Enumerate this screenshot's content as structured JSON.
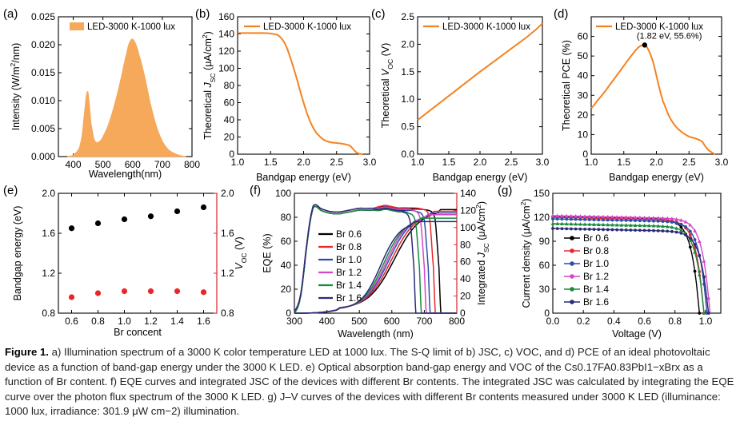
{
  "colors": {
    "orange": "#f58220",
    "fill_orange": "#f6a95a",
    "black": "#000000",
    "red": "#e8262a",
    "blue": "#2b4fa8",
    "magenta": "#d646c8",
    "green": "#1a8a3c",
    "navy": "#2a2a78",
    "bandgap": "#000000",
    "voc_axis": "#e8262a"
  },
  "panels": {
    "a": {
      "letter": "(a)"
    },
    "b": {
      "letter": "(b)"
    },
    "c": {
      "letter": "(c)"
    },
    "d": {
      "letter": "(d)"
    },
    "e": {
      "letter": "(e)"
    },
    "f": {
      "letter": "(f)"
    },
    "g": {
      "letter": "(g)"
    }
  },
  "caption": {
    "fig_label": "Figure 1.",
    "text": "a) Illumination spectrum of a 3000 K color temperature LED at 1000 lux. The S-Q limit of b) JSC, c) VOC, and d) PCE of an ideal photovoltaic device as a function of band-gap energy under the 3000 K LED. e) Optical absorption band-gap energy and VOC of the Cs0.17FA0.83PbI1−xBrx as a function of Br content. f) EQE curves and integrated JSC of the devices with different Br contents. The integrated JSC was calculated by integrating the EQE curve over the photon flux spectrum of the 3000 K LED. g) J–V curves of the devices with different Br contents measured under 3000 K LED (illuminance: 1000 lux, irradiance: 301.9 μW cm−2) illumination."
  },
  "chart_data": [
    {
      "id": "a",
      "type": "area",
      "xlabel": "Wavelength(nm)",
      "ylabel": "Intensity (W/m²/nm)",
      "legend": [
        "LED-3000 K-1000 lux"
      ],
      "xlim": [
        350,
        800
      ],
      "ylim": [
        0,
        0.025
      ],
      "xticks": [
        400,
        500,
        600,
        700,
        800
      ],
      "yticks": [
        0.0,
        0.005,
        0.01,
        0.015,
        0.02,
        0.025
      ],
      "ytick_labels": [
        "0.000",
        "0.005",
        "0.010",
        "0.015",
        "0.020",
        "0.025"
      ],
      "series": [
        {
          "x": [
            380,
            400,
            420,
            430,
            440,
            445,
            450,
            455,
            460,
            470,
            480,
            490,
            500,
            520,
            540,
            560,
            580,
            590,
            600,
            610,
            620,
            640,
            660,
            680,
            700,
            720,
            740,
            760,
            780
          ],
          "y": [
            0,
            0.0003,
            0.0015,
            0.004,
            0.009,
            0.0112,
            0.0115,
            0.009,
            0.006,
            0.0032,
            0.0025,
            0.0028,
            0.0036,
            0.006,
            0.0095,
            0.0138,
            0.0185,
            0.0205,
            0.021,
            0.0202,
            0.0185,
            0.0145,
            0.0095,
            0.0055,
            0.0028,
            0.0013,
            0.0006,
            0.0002,
            0
          ]
        }
      ]
    },
    {
      "id": "b",
      "type": "line",
      "xlabel": "Bandgap energy (eV)",
      "ylabel": "Theoretical J_SC (μA/cm²)",
      "legend": [
        "LED-3000 K-1000 lux"
      ],
      "xlim": [
        1.0,
        3.0
      ],
      "ylim": [
        0,
        160
      ],
      "xticks": [
        1.0,
        1.5,
        2.0,
        2.5,
        3.0
      ],
      "xtick_labels": [
        "1.0",
        "1.5",
        "2.0",
        "2.5",
        "3.0"
      ],
      "yticks": [
        0,
        20,
        40,
        60,
        80,
        100,
        120,
        140,
        160
      ],
      "series": [
        {
          "x": [
            1.0,
            1.2,
            1.4,
            1.5,
            1.6,
            1.65,
            1.7,
            1.75,
            1.8,
            1.85,
            1.9,
            1.95,
            2.0,
            2.05,
            2.1,
            2.15,
            2.2,
            2.3,
            2.4,
            2.5,
            2.6,
            2.7,
            2.75,
            2.8,
            2.85,
            2.9
          ],
          "y": [
            141,
            141,
            141,
            140.5,
            139,
            136,
            131,
            123,
            112,
            100,
            87,
            73,
            60,
            48,
            38,
            30,
            24,
            17,
            14,
            13,
            12,
            10,
            6,
            2,
            0.5,
            0
          ]
        }
      ]
    },
    {
      "id": "c",
      "type": "line",
      "xlabel": "Bandgap energy (eV)",
      "ylabel": "Theoretical V_OC (V)",
      "legend": [
        "LED-3000 K-1000 lux"
      ],
      "xlim": [
        1.0,
        3.0
      ],
      "ylim": [
        0,
        2.5
      ],
      "xticks": [
        1.0,
        1.5,
        2.0,
        2.5,
        3.0
      ],
      "xtick_labels": [
        "1.0",
        "1.5",
        "2.0",
        "2.5",
        "3.0"
      ],
      "yticks": [
        0.0,
        0.5,
        1.0,
        1.5,
        2.0,
        2.5
      ],
      "ytick_labels": [
        "0.0",
        "0.5",
        "1.0",
        "1.5",
        "2.0",
        "2.5"
      ],
      "series": [
        {
          "x": [
            1.0,
            1.25,
            1.5,
            1.75,
            2.0,
            2.25,
            2.5,
            2.75,
            2.9,
            3.0
          ],
          "y": [
            0.62,
            0.84,
            1.06,
            1.28,
            1.5,
            1.71,
            1.92,
            2.13,
            2.27,
            2.38
          ]
        }
      ]
    },
    {
      "id": "d",
      "type": "line",
      "xlabel": "Bandgap energy (eV)",
      "ylabel": "Theoretical PCE (%)",
      "legend": [
        "LED-3000 K-1000 lux"
      ],
      "annotation": "(1.82 eV, 55.6%)",
      "peak": [
        1.82,
        55.6
      ],
      "xlim": [
        1.0,
        3.0
      ],
      "ylim": [
        0,
        70
      ],
      "xticks": [
        1.0,
        1.5,
        2.0,
        2.5,
        3.0
      ],
      "xtick_labels": [
        "1.0",
        "1.5",
        "2.0",
        "2.5",
        "3.0"
      ],
      "yticks": [
        0,
        10,
        20,
        30,
        40,
        50,
        60
      ],
      "series": [
        {
          "x": [
            1.0,
            1.1,
            1.2,
            1.3,
            1.4,
            1.5,
            1.6,
            1.7,
            1.75,
            1.82,
            1.88,
            1.95,
            2.0,
            2.05,
            2.1,
            2.2,
            2.3,
            2.4,
            2.5,
            2.6,
            2.7,
            2.75,
            2.8,
            2.9
          ],
          "y": [
            23.5,
            27.5,
            31.5,
            36,
            40.5,
            45,
            49.5,
            53.5,
            55,
            55.6,
            53,
            47,
            40,
            33,
            27,
            19,
            14,
            11,
            9,
            8,
            6.5,
            4,
            2,
            0
          ]
        }
      ]
    },
    {
      "id": "e",
      "type": "scatter",
      "xlabel": "Br concent",
      "ylabel": "Bandgap energy (eV)",
      "ylabel_right": "V_OC (V)",
      "xlim": [
        0.5,
        1.7
      ],
      "ylim": [
        0.8,
        2.0
      ],
      "ylim_right": [
        0.8,
        2.0
      ],
      "xticks": [
        0.6,
        0.8,
        1.0,
        1.2,
        1.4,
        1.6
      ],
      "xtick_labels": [
        "0.6",
        "0.8",
        "1.0",
        "1.2",
        "1.4",
        "1.6"
      ],
      "yticks": [
        0.8,
        1.2,
        1.6,
        2.0
      ],
      "ytick_labels": [
        "0.8",
        "1.2",
        "1.6",
        "2.0"
      ],
      "series": [
        {
          "axis": "left",
          "x": [
            0.6,
            0.8,
            1.0,
            1.2,
            1.4,
            1.6
          ],
          "y": [
            1.65,
            1.7,
            1.74,
            1.77,
            1.82,
            1.86
          ]
        },
        {
          "axis": "right",
          "x": [
            0.6,
            0.8,
            1.0,
            1.2,
            1.4,
            1.6
          ],
          "y": [
            0.96,
            1.0,
            1.02,
            1.02,
            1.02,
            1.01
          ]
        }
      ]
    },
    {
      "id": "f",
      "type": "line",
      "xlabel": "Wavelength (nm)",
      "ylabel": "EQE (%)",
      "ylabel_right": "Integrated J_SC (μA/cm²)",
      "xlim": [
        300,
        800
      ],
      "ylim": [
        0,
        100
      ],
      "ylim_right": [
        0,
        140
      ],
      "xticks": [
        300,
        400,
        500,
        600,
        700,
        800
      ],
      "yticks": [
        0,
        20,
        40,
        60,
        80,
        100
      ],
      "yticks_right": [
        0,
        20,
        40,
        60,
        80,
        100,
        120,
        140
      ],
      "series": [
        {
          "name": "Br 0.6",
          "edge": 745,
          "jsc": 121
        },
        {
          "name": "Br 0.8",
          "edge": 728,
          "jsc": 119
        },
        {
          "name": "Br 1.0",
          "edge": 712,
          "jsc": 117
        },
        {
          "name": "Br 1.2",
          "edge": 700,
          "jsc": 115
        },
        {
          "name": "Br 1.4",
          "edge": 685,
          "jsc": 111
        },
        {
          "name": "Br 1.6",
          "edge": 668,
          "jsc": 107
        }
      ],
      "eqe_shape": {
        "x": [
          300,
          320,
          340,
          355,
          365,
          380,
          400,
          420,
          440,
          460,
          480,
          500,
          520,
          540,
          560,
          580,
          600,
          620,
          640
        ],
        "y": [
          0,
          15,
          60,
          85,
          89,
          86,
          84,
          83,
          83,
          84,
          85,
          86,
          86,
          86,
          88,
          89,
          88,
          87,
          87
        ]
      }
    },
    {
      "id": "g",
      "type": "line",
      "xlabel": "Voltage (V)",
      "ylabel": "Current density (μA/cm²)",
      "xlim": [
        0.0,
        1.1
      ],
      "ylim": [
        0,
        150
      ],
      "xticks": [
        0.0,
        0.2,
        0.4,
        0.6,
        0.8,
        1.0
      ],
      "xtick_labels": [
        "0.0",
        "0.2",
        "0.4",
        "0.6",
        "0.8",
        "1.0"
      ],
      "yticks": [
        0,
        30,
        60,
        90,
        120,
        150
      ],
      "series": [
        {
          "name": "Br 0.6",
          "jsc": 121,
          "voc": 0.96
        },
        {
          "name": "Br 0.8",
          "jsc": 120,
          "voc": 0.99
        },
        {
          "name": "Br 1.0",
          "jsc": 118,
          "voc": 1.01
        },
        {
          "name": "Br 1.2",
          "jsc": 122,
          "voc": 1.03
        },
        {
          "name": "Br 1.4",
          "jsc": 112,
          "voc": 0.99
        },
        {
          "name": "Br 1.6",
          "jsc": 106,
          "voc": 1.02
        }
      ]
    }
  ]
}
